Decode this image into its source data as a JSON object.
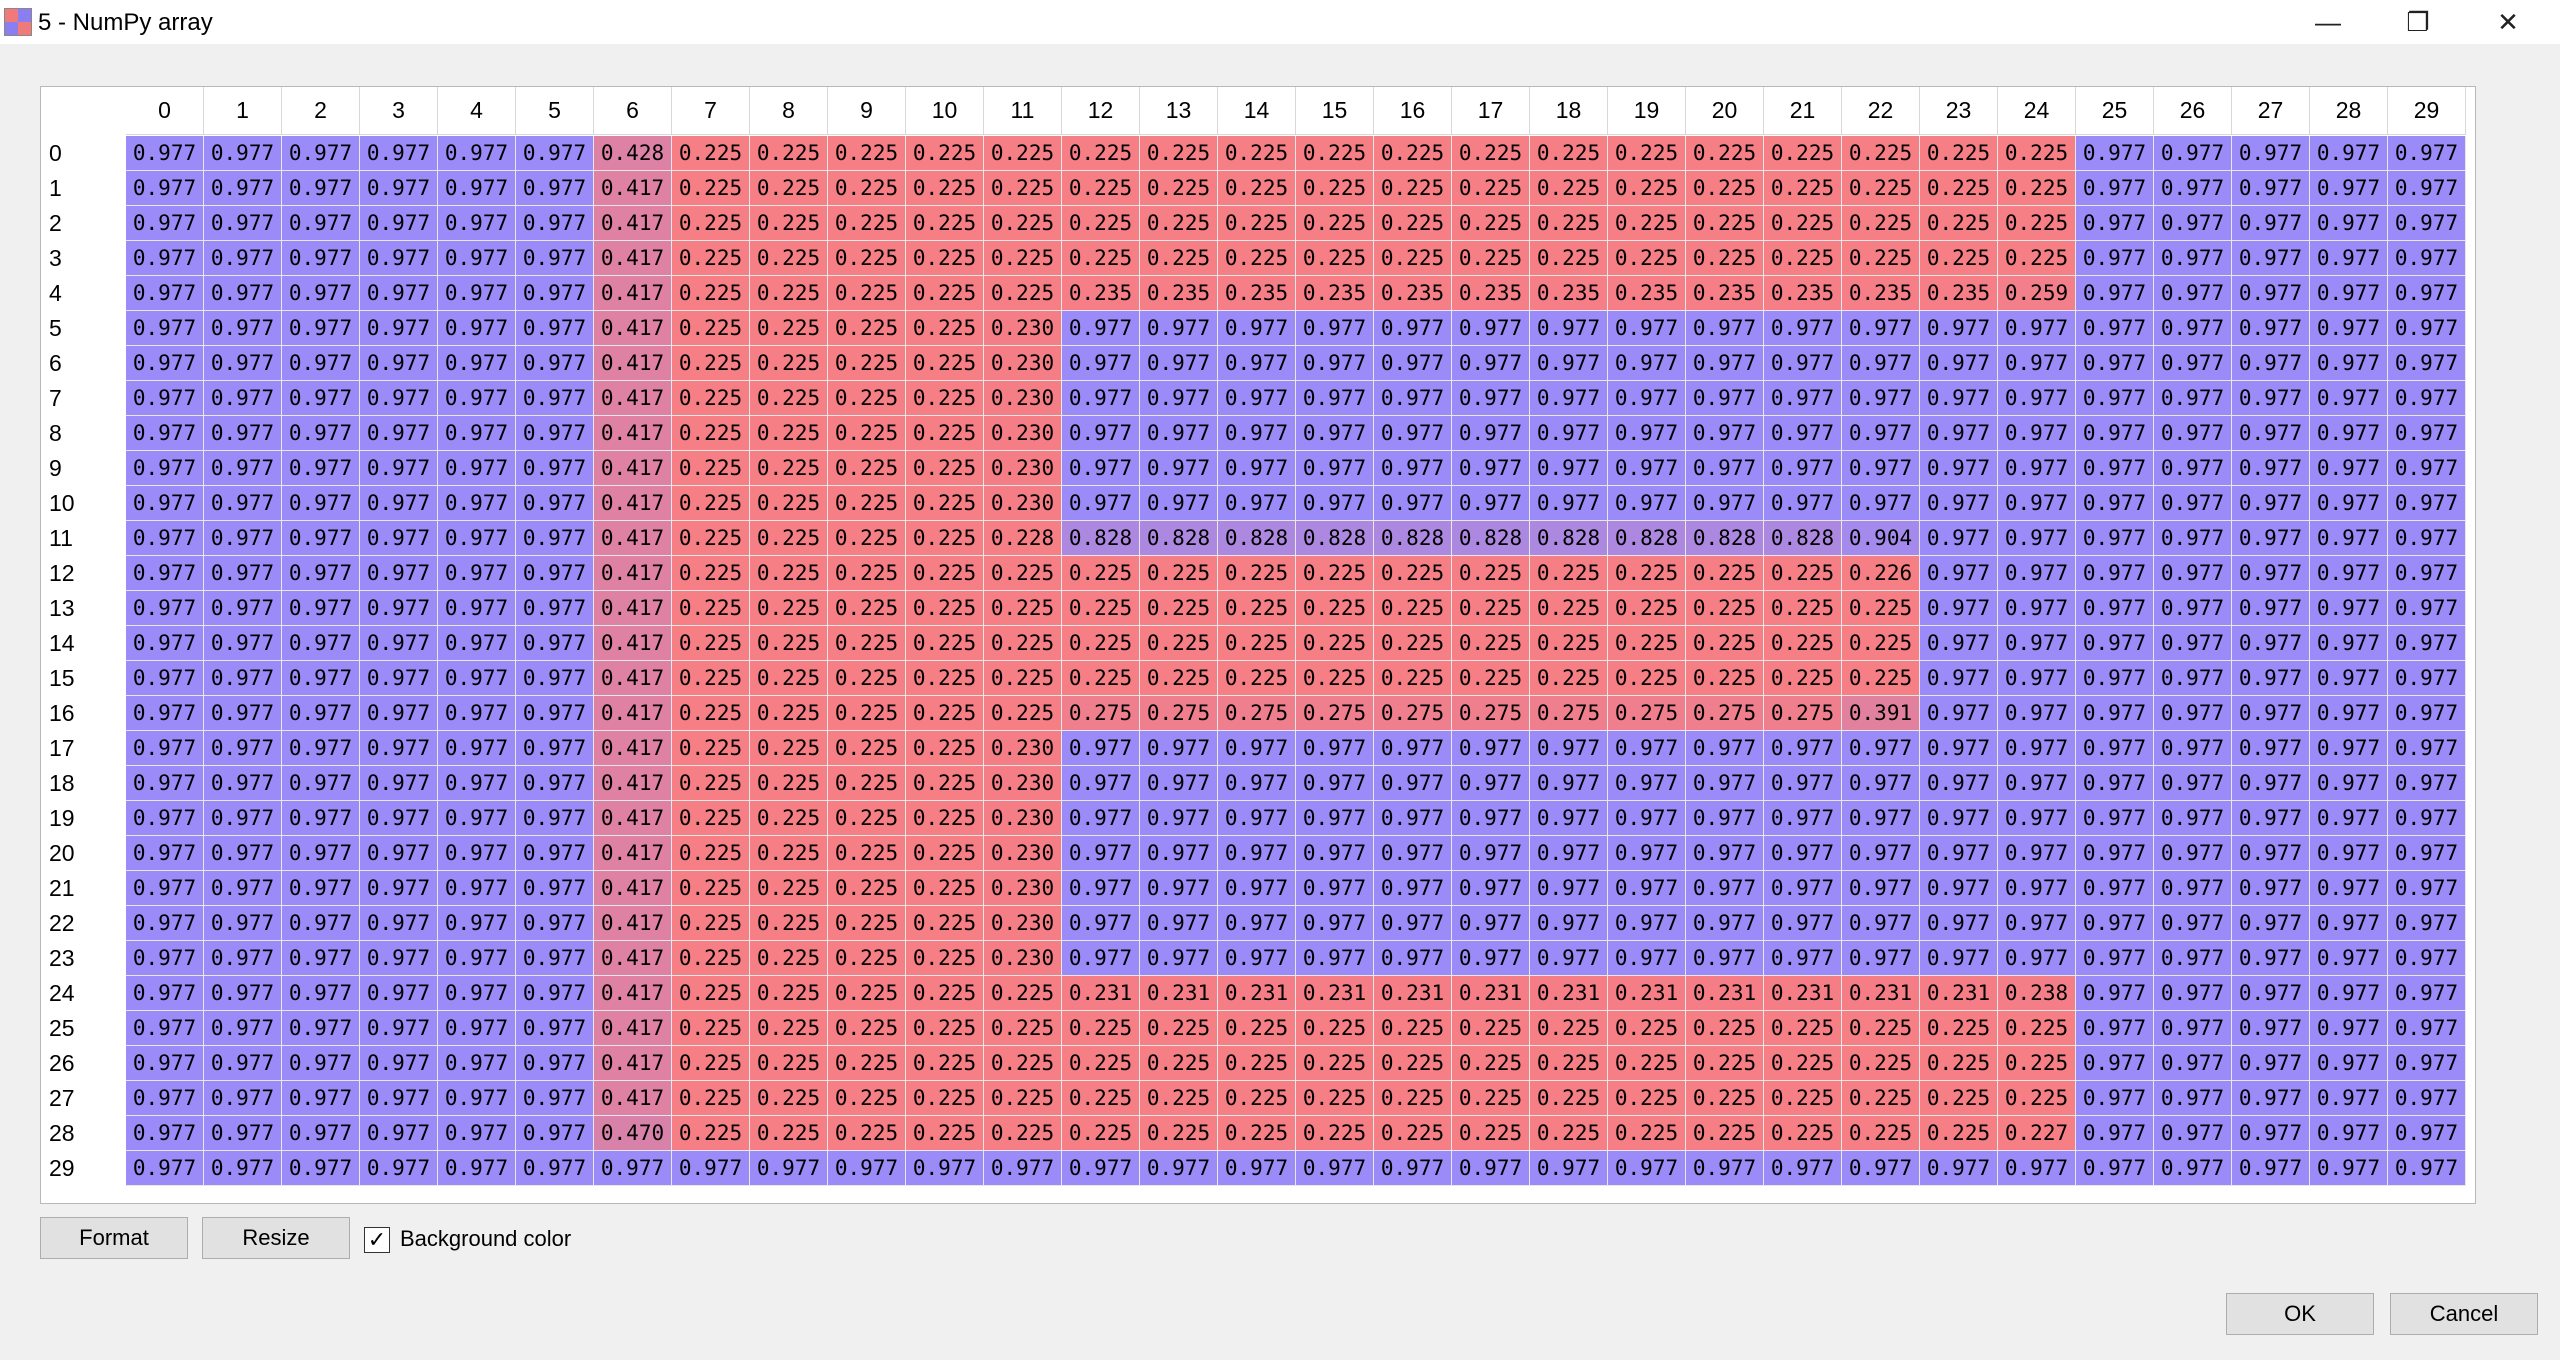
{
  "window": {
    "title": "5 - NumPy array",
    "controls": {
      "minimize": "—",
      "restore": "❐",
      "close": "✕"
    }
  },
  "table": {
    "columns": [
      "0",
      "1",
      "2",
      "3",
      "4",
      "5",
      "6",
      "7",
      "8",
      "9",
      "10",
      "11",
      "12",
      "13",
      "14",
      "15",
      "16",
      "17",
      "18",
      "19",
      "20",
      "21",
      "22",
      "23",
      "24",
      "25",
      "26",
      "27",
      "28",
      "29"
    ],
    "rows": [
      "0",
      "1",
      "2",
      "3",
      "4",
      "5",
      "6",
      "7",
      "8",
      "9",
      "10",
      "11",
      "12",
      "13",
      "14",
      "15",
      "16",
      "17",
      "18",
      "19",
      "20",
      "21",
      "22",
      "23",
      "24",
      "25",
      "26",
      "27",
      "28",
      "29"
    ],
    "values": [
      [
        "0.977",
        "0.977",
        "0.977",
        "0.977",
        "0.977",
        "0.977",
        "0.428",
        "0.225",
        "0.225",
        "0.225",
        "0.225",
        "0.225",
        "0.225",
        "0.225",
        "0.225",
        "0.225",
        "0.225",
        "0.225",
        "0.225",
        "0.225",
        "0.225",
        "0.225",
        "0.225",
        "0.225",
        "0.225",
        "0.977",
        "0.977",
        "0.977",
        "0.977",
        "0.977"
      ],
      [
        "0.977",
        "0.977",
        "0.977",
        "0.977",
        "0.977",
        "0.977",
        "0.417",
        "0.225",
        "0.225",
        "0.225",
        "0.225",
        "0.225",
        "0.225",
        "0.225",
        "0.225",
        "0.225",
        "0.225",
        "0.225",
        "0.225",
        "0.225",
        "0.225",
        "0.225",
        "0.225",
        "0.225",
        "0.225",
        "0.977",
        "0.977",
        "0.977",
        "0.977",
        "0.977"
      ],
      [
        "0.977",
        "0.977",
        "0.977",
        "0.977",
        "0.977",
        "0.977",
        "0.417",
        "0.225",
        "0.225",
        "0.225",
        "0.225",
        "0.225",
        "0.225",
        "0.225",
        "0.225",
        "0.225",
        "0.225",
        "0.225",
        "0.225",
        "0.225",
        "0.225",
        "0.225",
        "0.225",
        "0.225",
        "0.225",
        "0.977",
        "0.977",
        "0.977",
        "0.977",
        "0.977"
      ],
      [
        "0.977",
        "0.977",
        "0.977",
        "0.977",
        "0.977",
        "0.977",
        "0.417",
        "0.225",
        "0.225",
        "0.225",
        "0.225",
        "0.225",
        "0.225",
        "0.225",
        "0.225",
        "0.225",
        "0.225",
        "0.225",
        "0.225",
        "0.225",
        "0.225",
        "0.225",
        "0.225",
        "0.225",
        "0.225",
        "0.977",
        "0.977",
        "0.977",
        "0.977",
        "0.977"
      ],
      [
        "0.977",
        "0.977",
        "0.977",
        "0.977",
        "0.977",
        "0.977",
        "0.417",
        "0.225",
        "0.225",
        "0.225",
        "0.225",
        "0.225",
        "0.235",
        "0.235",
        "0.235",
        "0.235",
        "0.235",
        "0.235",
        "0.235",
        "0.235",
        "0.235",
        "0.235",
        "0.235",
        "0.235",
        "0.259",
        "0.977",
        "0.977",
        "0.977",
        "0.977",
        "0.977"
      ],
      [
        "0.977",
        "0.977",
        "0.977",
        "0.977",
        "0.977",
        "0.977",
        "0.417",
        "0.225",
        "0.225",
        "0.225",
        "0.225",
        "0.230",
        "0.977",
        "0.977",
        "0.977",
        "0.977",
        "0.977",
        "0.977",
        "0.977",
        "0.977",
        "0.977",
        "0.977",
        "0.977",
        "0.977",
        "0.977",
        "0.977",
        "0.977",
        "0.977",
        "0.977",
        "0.977"
      ],
      [
        "0.977",
        "0.977",
        "0.977",
        "0.977",
        "0.977",
        "0.977",
        "0.417",
        "0.225",
        "0.225",
        "0.225",
        "0.225",
        "0.230",
        "0.977",
        "0.977",
        "0.977",
        "0.977",
        "0.977",
        "0.977",
        "0.977",
        "0.977",
        "0.977",
        "0.977",
        "0.977",
        "0.977",
        "0.977",
        "0.977",
        "0.977",
        "0.977",
        "0.977",
        "0.977"
      ],
      [
        "0.977",
        "0.977",
        "0.977",
        "0.977",
        "0.977",
        "0.977",
        "0.417",
        "0.225",
        "0.225",
        "0.225",
        "0.225",
        "0.230",
        "0.977",
        "0.977",
        "0.977",
        "0.977",
        "0.977",
        "0.977",
        "0.977",
        "0.977",
        "0.977",
        "0.977",
        "0.977",
        "0.977",
        "0.977",
        "0.977",
        "0.977",
        "0.977",
        "0.977",
        "0.977"
      ],
      [
        "0.977",
        "0.977",
        "0.977",
        "0.977",
        "0.977",
        "0.977",
        "0.417",
        "0.225",
        "0.225",
        "0.225",
        "0.225",
        "0.230",
        "0.977",
        "0.977",
        "0.977",
        "0.977",
        "0.977",
        "0.977",
        "0.977",
        "0.977",
        "0.977",
        "0.977",
        "0.977",
        "0.977",
        "0.977",
        "0.977",
        "0.977",
        "0.977",
        "0.977",
        "0.977"
      ],
      [
        "0.977",
        "0.977",
        "0.977",
        "0.977",
        "0.977",
        "0.977",
        "0.417",
        "0.225",
        "0.225",
        "0.225",
        "0.225",
        "0.230",
        "0.977",
        "0.977",
        "0.977",
        "0.977",
        "0.977",
        "0.977",
        "0.977",
        "0.977",
        "0.977",
        "0.977",
        "0.977",
        "0.977",
        "0.977",
        "0.977",
        "0.977",
        "0.977",
        "0.977",
        "0.977"
      ],
      [
        "0.977",
        "0.977",
        "0.977",
        "0.977",
        "0.977",
        "0.977",
        "0.417",
        "0.225",
        "0.225",
        "0.225",
        "0.225",
        "0.230",
        "0.977",
        "0.977",
        "0.977",
        "0.977",
        "0.977",
        "0.977",
        "0.977",
        "0.977",
        "0.977",
        "0.977",
        "0.977",
        "0.977",
        "0.977",
        "0.977",
        "0.977",
        "0.977",
        "0.977",
        "0.977"
      ],
      [
        "0.977",
        "0.977",
        "0.977",
        "0.977",
        "0.977",
        "0.977",
        "0.417",
        "0.225",
        "0.225",
        "0.225",
        "0.225",
        "0.228",
        "0.828",
        "0.828",
        "0.828",
        "0.828",
        "0.828",
        "0.828",
        "0.828",
        "0.828",
        "0.828",
        "0.828",
        "0.904",
        "0.977",
        "0.977",
        "0.977",
        "0.977",
        "0.977",
        "0.977",
        "0.977"
      ],
      [
        "0.977",
        "0.977",
        "0.977",
        "0.977",
        "0.977",
        "0.977",
        "0.417",
        "0.225",
        "0.225",
        "0.225",
        "0.225",
        "0.225",
        "0.225",
        "0.225",
        "0.225",
        "0.225",
        "0.225",
        "0.225",
        "0.225",
        "0.225",
        "0.225",
        "0.225",
        "0.226",
        "0.977",
        "0.977",
        "0.977",
        "0.977",
        "0.977",
        "0.977",
        "0.977"
      ],
      [
        "0.977",
        "0.977",
        "0.977",
        "0.977",
        "0.977",
        "0.977",
        "0.417",
        "0.225",
        "0.225",
        "0.225",
        "0.225",
        "0.225",
        "0.225",
        "0.225",
        "0.225",
        "0.225",
        "0.225",
        "0.225",
        "0.225",
        "0.225",
        "0.225",
        "0.225",
        "0.225",
        "0.977",
        "0.977",
        "0.977",
        "0.977",
        "0.977",
        "0.977",
        "0.977"
      ],
      [
        "0.977",
        "0.977",
        "0.977",
        "0.977",
        "0.977",
        "0.977",
        "0.417",
        "0.225",
        "0.225",
        "0.225",
        "0.225",
        "0.225",
        "0.225",
        "0.225",
        "0.225",
        "0.225",
        "0.225",
        "0.225",
        "0.225",
        "0.225",
        "0.225",
        "0.225",
        "0.225",
        "0.977",
        "0.977",
        "0.977",
        "0.977",
        "0.977",
        "0.977",
        "0.977"
      ],
      [
        "0.977",
        "0.977",
        "0.977",
        "0.977",
        "0.977",
        "0.977",
        "0.417",
        "0.225",
        "0.225",
        "0.225",
        "0.225",
        "0.225",
        "0.225",
        "0.225",
        "0.225",
        "0.225",
        "0.225",
        "0.225",
        "0.225",
        "0.225",
        "0.225",
        "0.225",
        "0.225",
        "0.977",
        "0.977",
        "0.977",
        "0.977",
        "0.977",
        "0.977",
        "0.977"
      ],
      [
        "0.977",
        "0.977",
        "0.977",
        "0.977",
        "0.977",
        "0.977",
        "0.417",
        "0.225",
        "0.225",
        "0.225",
        "0.225",
        "0.225",
        "0.275",
        "0.275",
        "0.275",
        "0.275",
        "0.275",
        "0.275",
        "0.275",
        "0.275",
        "0.275",
        "0.275",
        "0.391",
        "0.977",
        "0.977",
        "0.977",
        "0.977",
        "0.977",
        "0.977",
        "0.977"
      ],
      [
        "0.977",
        "0.977",
        "0.977",
        "0.977",
        "0.977",
        "0.977",
        "0.417",
        "0.225",
        "0.225",
        "0.225",
        "0.225",
        "0.230",
        "0.977",
        "0.977",
        "0.977",
        "0.977",
        "0.977",
        "0.977",
        "0.977",
        "0.977",
        "0.977",
        "0.977",
        "0.977",
        "0.977",
        "0.977",
        "0.977",
        "0.977",
        "0.977",
        "0.977",
        "0.977"
      ],
      [
        "0.977",
        "0.977",
        "0.977",
        "0.977",
        "0.977",
        "0.977",
        "0.417",
        "0.225",
        "0.225",
        "0.225",
        "0.225",
        "0.230",
        "0.977",
        "0.977",
        "0.977",
        "0.977",
        "0.977",
        "0.977",
        "0.977",
        "0.977",
        "0.977",
        "0.977",
        "0.977",
        "0.977",
        "0.977",
        "0.977",
        "0.977",
        "0.977",
        "0.977",
        "0.977"
      ],
      [
        "0.977",
        "0.977",
        "0.977",
        "0.977",
        "0.977",
        "0.977",
        "0.417",
        "0.225",
        "0.225",
        "0.225",
        "0.225",
        "0.230",
        "0.977",
        "0.977",
        "0.977",
        "0.977",
        "0.977",
        "0.977",
        "0.977",
        "0.977",
        "0.977",
        "0.977",
        "0.977",
        "0.977",
        "0.977",
        "0.977",
        "0.977",
        "0.977",
        "0.977",
        "0.977"
      ],
      [
        "0.977",
        "0.977",
        "0.977",
        "0.977",
        "0.977",
        "0.977",
        "0.417",
        "0.225",
        "0.225",
        "0.225",
        "0.225",
        "0.230",
        "0.977",
        "0.977",
        "0.977",
        "0.977",
        "0.977",
        "0.977",
        "0.977",
        "0.977",
        "0.977",
        "0.977",
        "0.977",
        "0.977",
        "0.977",
        "0.977",
        "0.977",
        "0.977",
        "0.977",
        "0.977"
      ],
      [
        "0.977",
        "0.977",
        "0.977",
        "0.977",
        "0.977",
        "0.977",
        "0.417",
        "0.225",
        "0.225",
        "0.225",
        "0.225",
        "0.230",
        "0.977",
        "0.977",
        "0.977",
        "0.977",
        "0.977",
        "0.977",
        "0.977",
        "0.977",
        "0.977",
        "0.977",
        "0.977",
        "0.977",
        "0.977",
        "0.977",
        "0.977",
        "0.977",
        "0.977",
        "0.977"
      ],
      [
        "0.977",
        "0.977",
        "0.977",
        "0.977",
        "0.977",
        "0.977",
        "0.417",
        "0.225",
        "0.225",
        "0.225",
        "0.225",
        "0.230",
        "0.977",
        "0.977",
        "0.977",
        "0.977",
        "0.977",
        "0.977",
        "0.977",
        "0.977",
        "0.977",
        "0.977",
        "0.977",
        "0.977",
        "0.977",
        "0.977",
        "0.977",
        "0.977",
        "0.977",
        "0.977"
      ],
      [
        "0.977",
        "0.977",
        "0.977",
        "0.977",
        "0.977",
        "0.977",
        "0.417",
        "0.225",
        "0.225",
        "0.225",
        "0.225",
        "0.230",
        "0.977",
        "0.977",
        "0.977",
        "0.977",
        "0.977",
        "0.977",
        "0.977",
        "0.977",
        "0.977",
        "0.977",
        "0.977",
        "0.977",
        "0.977",
        "0.977",
        "0.977",
        "0.977",
        "0.977",
        "0.977"
      ],
      [
        "0.977",
        "0.977",
        "0.977",
        "0.977",
        "0.977",
        "0.977",
        "0.417",
        "0.225",
        "0.225",
        "0.225",
        "0.225",
        "0.225",
        "0.231",
        "0.231",
        "0.231",
        "0.231",
        "0.231",
        "0.231",
        "0.231",
        "0.231",
        "0.231",
        "0.231",
        "0.231",
        "0.231",
        "0.238",
        "0.977",
        "0.977",
        "0.977",
        "0.977",
        "0.977"
      ],
      [
        "0.977",
        "0.977",
        "0.977",
        "0.977",
        "0.977",
        "0.977",
        "0.417",
        "0.225",
        "0.225",
        "0.225",
        "0.225",
        "0.225",
        "0.225",
        "0.225",
        "0.225",
        "0.225",
        "0.225",
        "0.225",
        "0.225",
        "0.225",
        "0.225",
        "0.225",
        "0.225",
        "0.225",
        "0.225",
        "0.977",
        "0.977",
        "0.977",
        "0.977",
        "0.977"
      ],
      [
        "0.977",
        "0.977",
        "0.977",
        "0.977",
        "0.977",
        "0.977",
        "0.417",
        "0.225",
        "0.225",
        "0.225",
        "0.225",
        "0.225",
        "0.225",
        "0.225",
        "0.225",
        "0.225",
        "0.225",
        "0.225",
        "0.225",
        "0.225",
        "0.225",
        "0.225",
        "0.225",
        "0.225",
        "0.225",
        "0.977",
        "0.977",
        "0.977",
        "0.977",
        "0.977"
      ],
      [
        "0.977",
        "0.977",
        "0.977",
        "0.977",
        "0.977",
        "0.977",
        "0.417",
        "0.225",
        "0.225",
        "0.225",
        "0.225",
        "0.225",
        "0.225",
        "0.225",
        "0.225",
        "0.225",
        "0.225",
        "0.225",
        "0.225",
        "0.225",
        "0.225",
        "0.225",
        "0.225",
        "0.225",
        "0.225",
        "0.977",
        "0.977",
        "0.977",
        "0.977",
        "0.977"
      ],
      [
        "0.977",
        "0.977",
        "0.977",
        "0.977",
        "0.977",
        "0.977",
        "0.470",
        "0.225",
        "0.225",
        "0.225",
        "0.225",
        "0.225",
        "0.225",
        "0.225",
        "0.225",
        "0.225",
        "0.225",
        "0.225",
        "0.225",
        "0.225",
        "0.225",
        "0.225",
        "0.225",
        "0.225",
        "0.227",
        "0.977",
        "0.977",
        "0.977",
        "0.977",
        "0.977"
      ],
      [
        "0.977",
        "0.977",
        "0.977",
        "0.977",
        "0.977",
        "0.977",
        "0.977",
        "0.977",
        "0.977",
        "0.977",
        "0.977",
        "0.977",
        "0.977",
        "0.977",
        "0.977",
        "0.977",
        "0.977",
        "0.977",
        "0.977",
        "0.977",
        "0.977",
        "0.977",
        "0.977",
        "0.977",
        "0.977",
        "0.977",
        "0.977",
        "0.977",
        "0.977",
        "0.977"
      ]
    ],
    "colors": {
      "low": "#f67e85",
      "high": "#9b8bf8"
    }
  },
  "controls": {
    "format_label": "Format",
    "resize_label": "Resize",
    "background_color_label": "Background color",
    "background_color_checked": true,
    "ok_label": "OK",
    "cancel_label": "Cancel"
  }
}
